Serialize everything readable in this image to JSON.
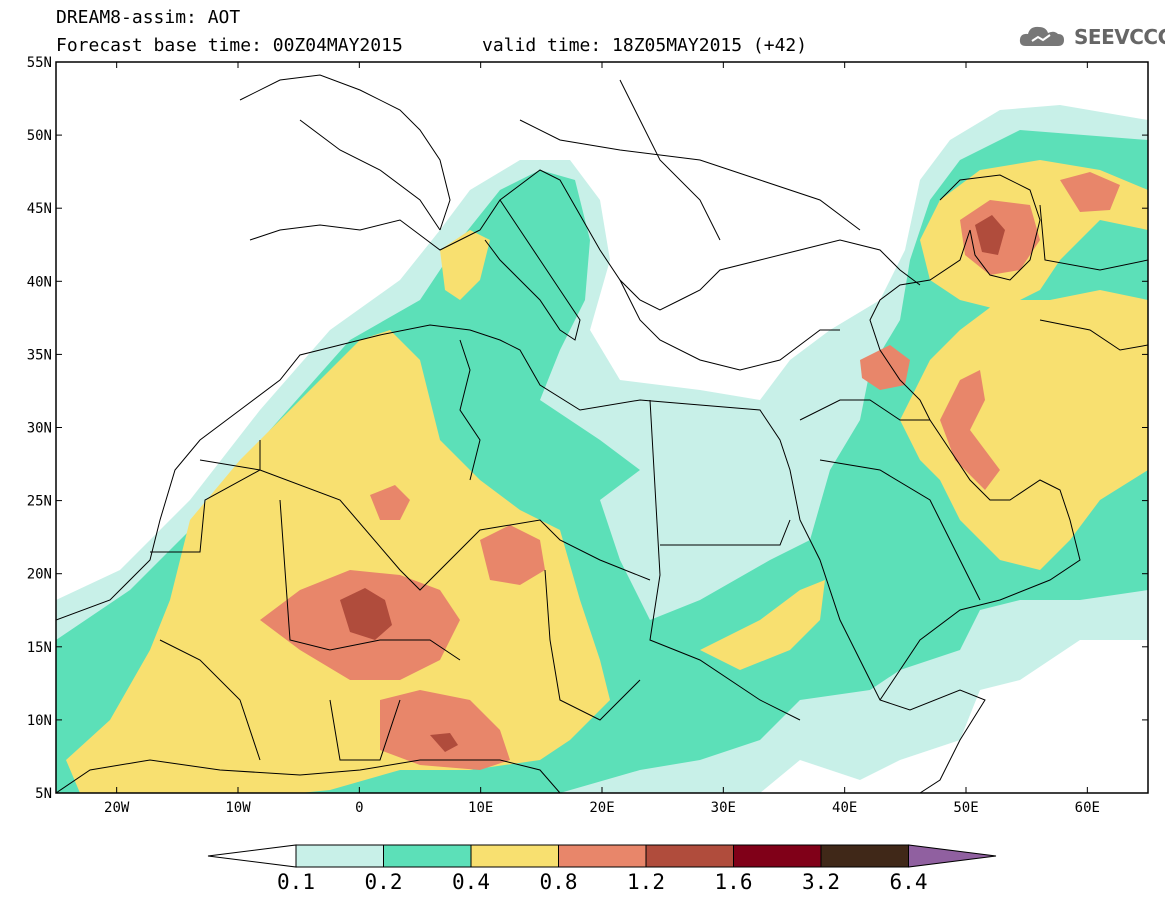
{
  "header": {
    "title_line1": "DREAM8-assim: AOT",
    "title_line2": "Forecast base time: 00Z04MAY2015",
    "valid_time": "valid time: 18Z05MAY2015 (+42)",
    "logo_text": "SEEVCCC"
  },
  "map": {
    "lat_labels": [
      "55N",
      "50N",
      "45N",
      "40N",
      "35N",
      "30N",
      "25N",
      "20N",
      "15N",
      "10N",
      "5N"
    ],
    "lon_labels": [
      "20W",
      "10W",
      "0",
      "10E",
      "20E",
      "30E",
      "40E",
      "50E",
      "60E"
    ],
    "lat_range": [
      5,
      55
    ],
    "lon_range": [
      -25,
      65
    ]
  },
  "colorbar": {
    "labels": [
      "0.1",
      "0.2",
      "0.4",
      "0.8",
      "1.2",
      "1.6",
      "3.2",
      "6.4"
    ],
    "colors": [
      "#ffffff",
      "#c8f0e8",
      "#5ce0b8",
      "#f8e070",
      "#e8866a",
      "#b04c3c",
      "#800018",
      "#402818",
      "#9060a0"
    ]
  },
  "palette": {
    "v02": "#c8f0e8",
    "v04": "#5ce0b8",
    "v08": "#f8e070",
    "v12": "#e8866a",
    "v16": "#b04c3c"
  }
}
